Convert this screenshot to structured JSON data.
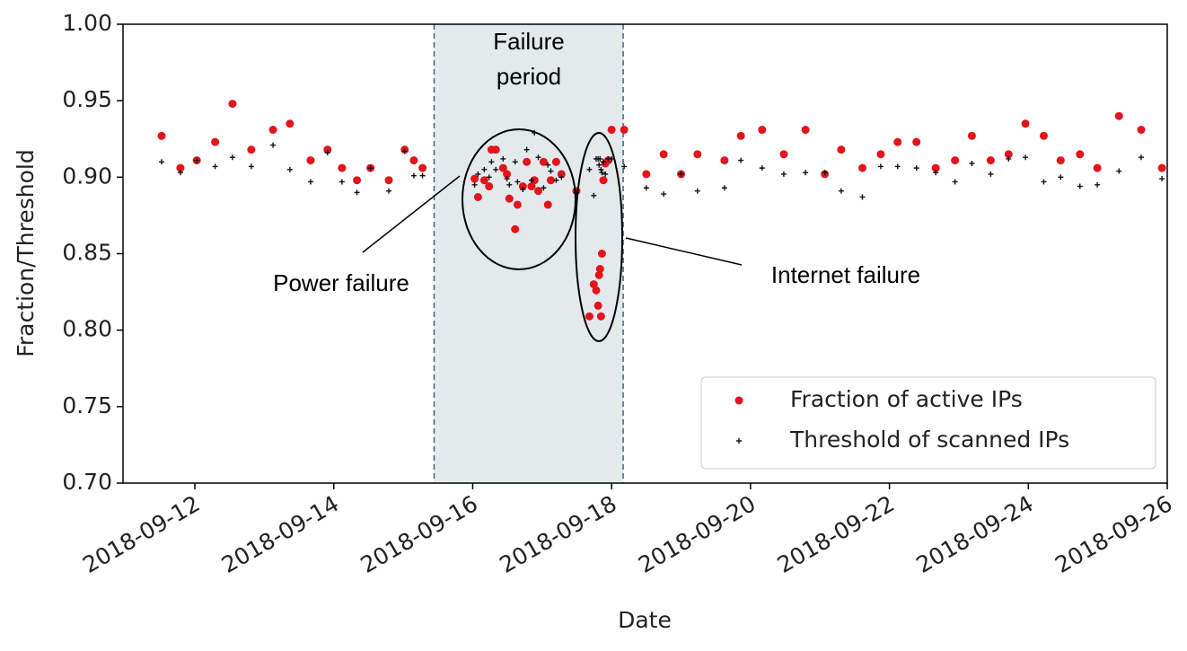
{
  "chart_data": {
    "type": "scatter",
    "xlabel": "Date",
    "ylabel": "Fraction/Threshold",
    "xlim": [
      "2018-09-10T23:10",
      "2018-09-26T00:00"
    ],
    "xticks": [
      "2018-09-12",
      "2018-09-14",
      "2018-09-16",
      "2018-09-18",
      "2018-09-20",
      "2018-09-22",
      "2018-09-24",
      "2018-09-26"
    ],
    "ylim": [
      0.7,
      1.0
    ],
    "yticks": [
      {
        "value": 0.7,
        "label": "0.70"
      },
      {
        "value": 0.75,
        "label": "0.75"
      },
      {
        "value": 0.8,
        "label": "0.80"
      },
      {
        "value": 0.85,
        "label": "0.85"
      },
      {
        "value": 0.9,
        "label": "0.90"
      },
      {
        "value": 0.95,
        "label": "0.95"
      },
      {
        "value": 1.0,
        "label": "1.00"
      }
    ],
    "grid": false,
    "legend": "lower right",
    "shaded_region": {
      "start": "2018-09-15T10:40",
      "end": "2018-09-18T04:00",
      "label": [
        "Failure",
        "period"
      ],
      "color": "#e4e9ec"
    },
    "annotations": [
      {
        "text": "Power failure"
      },
      {
        "text": "Internet failure"
      }
    ],
    "x": [
      "2018-09-11T12:30",
      "2018-09-11T19:00",
      "2018-09-12T00:40",
      "2018-09-12T07:00",
      "2018-09-12T13:00",
      "2018-09-12T19:30",
      "2018-09-13T03:00",
      "2018-09-13T08:50",
      "2018-09-13T16:00",
      "2018-09-13T21:50",
      "2018-09-14T02:50",
      "2018-09-14T08:00",
      "2018-09-14T12:40",
      "2018-09-14T19:00",
      "2018-09-15T00:30",
      "2018-09-15T03:40",
      "2018-09-15T06:40",
      "2018-09-16T00:40",
      "2018-09-16T01:50",
      "2018-09-16T04:00",
      "2018-09-16T05:40",
      "2018-09-16T06:30",
      "2018-09-16T08:00",
      "2018-09-16T10:30",
      "2018-09-16T11:50",
      "2018-09-16T12:40",
      "2018-09-16T14:40",
      "2018-09-16T15:30",
      "2018-09-16T17:20",
      "2018-09-16T18:40",
      "2018-09-16T20:20",
      "2018-09-16T21:20",
      "2018-09-16T22:40",
      "2018-09-17T00:30",
      "2018-09-17T02:00",
      "2018-09-17T03:00",
      "2018-09-17T04:50",
      "2018-09-17T06:40",
      "2018-09-17T11:50",
      "2018-09-17T16:20",
      "2018-09-17T17:50",
      "2018-09-17T18:40",
      "2018-09-17T19:20",
      "2018-09-17T19:40",
      "2018-09-17T20:00",
      "2018-09-17T20:20",
      "2018-09-17T20:40",
      "2018-09-17T21:10",
      "2018-09-17T21:50",
      "2018-09-17T22:50",
      "2018-09-18T00:00",
      "2018-09-18T04:20",
      "2018-09-18T12:00",
      "2018-09-18T18:00",
      "2018-09-19T00:00",
      "2018-09-19T05:40",
      "2018-09-19T15:00",
      "2018-09-19T20:40",
      "2018-09-20T04:00",
      "2018-09-20T11:30",
      "2018-09-20T19:00",
      "2018-09-21T01:40",
      "2018-09-21T07:20",
      "2018-09-21T14:40",
      "2018-09-21T21:00",
      "2018-09-22T02:50",
      "2018-09-22T09:20",
      "2018-09-22T16:00",
      "2018-09-22T22:40",
      "2018-09-23T04:30",
      "2018-09-23T11:00",
      "2018-09-23T17:10",
      "2018-09-23T23:00",
      "2018-09-24T05:20",
      "2018-09-24T11:10",
      "2018-09-24T17:50",
      "2018-09-24T23:50",
      "2018-09-25T07:20",
      "2018-09-25T15:00",
      "2018-09-25T22:10"
    ],
    "series": [
      {
        "name": "Fraction of active IPs",
        "color": "#e3141b",
        "marker": "circle",
        "values": [
          0.927,
          0.906,
          0.911,
          0.923,
          0.948,
          0.918,
          0.931,
          0.935,
          0.911,
          0.918,
          0.906,
          0.898,
          0.906,
          0.898,
          0.918,
          0.911,
          0.906,
          0.899,
          0.887,
          0.898,
          0.894,
          0.918,
          0.918,
          0.906,
          0.902,
          0.886,
          0.866,
          0.882,
          0.894,
          0.91,
          0.894,
          0.898,
          0.891,
          0.91,
          0.882,
          0.898,
          0.91,
          0.902,
          0.891,
          0.809,
          0.83,
          0.826,
          0.816,
          0.836,
          0.84,
          0.809,
          0.85,
          0.898,
          0.909,
          0.911,
          0.931,
          0.931,
          0.902,
          0.915,
          0.902,
          0.915,
          0.911,
          0.927,
          0.931,
          0.915,
          0.931,
          0.902,
          0.918,
          0.906,
          0.915,
          0.923,
          0.923,
          0.906,
          0.911,
          0.927,
          0.911,
          0.915,
          0.935,
          0.927,
          0.911,
          0.915,
          0.906,
          0.94,
          0.931,
          0.906
        ]
      },
      {
        "name": "Threshold of scanned IPs",
        "color": "#111111",
        "marker": "plus",
        "values": [
          0.91,
          0.903,
          0.911,
          0.907,
          0.913,
          0.907,
          0.921,
          0.905,
          0.897,
          0.916,
          0.897,
          0.89,
          0.906,
          0.891,
          0.917,
          0.901,
          0.901,
          0.895,
          0.902,
          0.905,
          0.9,
          0.91,
          0.905,
          0.912,
          0.899,
          0.895,
          0.91,
          0.897,
          0.892,
          0.918,
          0.898,
          0.929,
          0.913,
          0.893,
          0.908,
          0.904,
          0.898,
          0.9,
          0.89,
          0.905,
          0.888,
          0.912,
          0.912,
          0.908,
          0.912,
          0.905,
          0.903,
          0.91,
          0.902,
          0.912,
          0.912,
          0.907,
          0.893,
          0.889,
          0.902,
          0.891,
          0.893,
          0.911,
          0.906,
          0.902,
          0.903,
          0.903,
          0.891,
          0.887,
          0.907,
          0.907,
          0.906,
          0.903,
          0.897,
          0.909,
          0.902,
          0.912,
          0.913,
          0.897,
          0.9,
          0.894,
          0.895,
          0.904,
          0.913,
          0.899
        ]
      }
    ]
  }
}
